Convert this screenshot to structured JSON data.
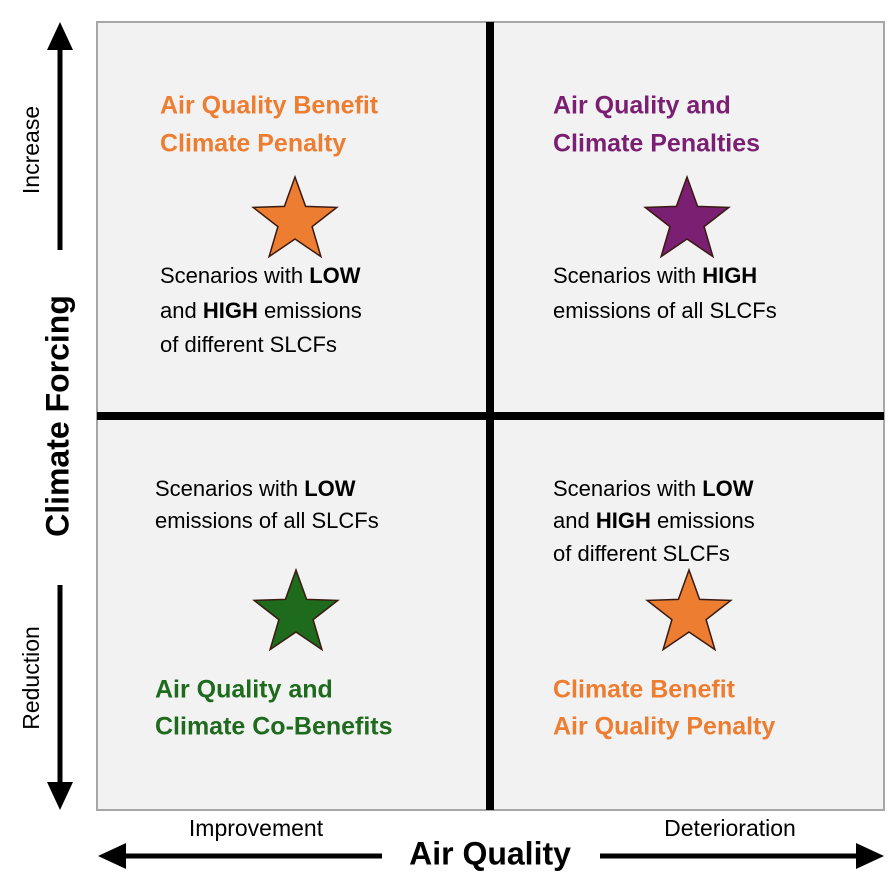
{
  "y_axis": {
    "title": "Climate Forcing",
    "top_label": "Increase",
    "bottom_label": "Reduction"
  },
  "x_axis": {
    "title": "Air Quality",
    "left_label": "Improvement",
    "right_label": "Deterioration"
  },
  "quadrants": [
    {
      "position": "top-left",
      "color": "#ed7d31",
      "heading": [
        "Air Quality Benefit",
        "Climate Penalty"
      ],
      "description": [
        [
          {
            "text": "Scenarios with "
          },
          {
            "text": "LOW",
            "bold": true
          }
        ],
        [
          {
            "text": "and "
          },
          {
            "text": "HIGH",
            "bold": true
          },
          {
            "text": " emissions"
          }
        ],
        [
          {
            "text": "of different SLCFs"
          }
        ]
      ]
    },
    {
      "position": "top-right",
      "color": "#7a1f72",
      "heading": [
        "Air Quality and",
        "Climate Penalties"
      ],
      "description": [
        [
          {
            "text": "Scenarios with "
          },
          {
            "text": "HIGH",
            "bold": true
          }
        ],
        [
          {
            "text": "emissions of all SLCFs"
          }
        ]
      ]
    },
    {
      "position": "bottom-left",
      "color": "#1e6b1e",
      "heading": [
        "Air Quality and",
        "Climate Co-Benefits"
      ],
      "description": [
        [
          {
            "text": "Scenarios with "
          },
          {
            "text": "LOW",
            "bold": true
          }
        ],
        [
          {
            "text": "emissions of all SLCFs"
          }
        ]
      ]
    },
    {
      "position": "bottom-right",
      "color": "#ed7d31",
      "heading": [
        "Climate Benefit",
        "Air Quality Penalty"
      ],
      "description": [
        [
          {
            "text": "Scenarios with "
          },
          {
            "text": "LOW",
            "bold": true
          }
        ],
        [
          {
            "text": "and "
          },
          {
            "text": "HIGH",
            "bold": true
          },
          {
            "text": " emissions"
          }
        ],
        [
          {
            "text": "of different SLCFs"
          }
        ]
      ]
    }
  ]
}
